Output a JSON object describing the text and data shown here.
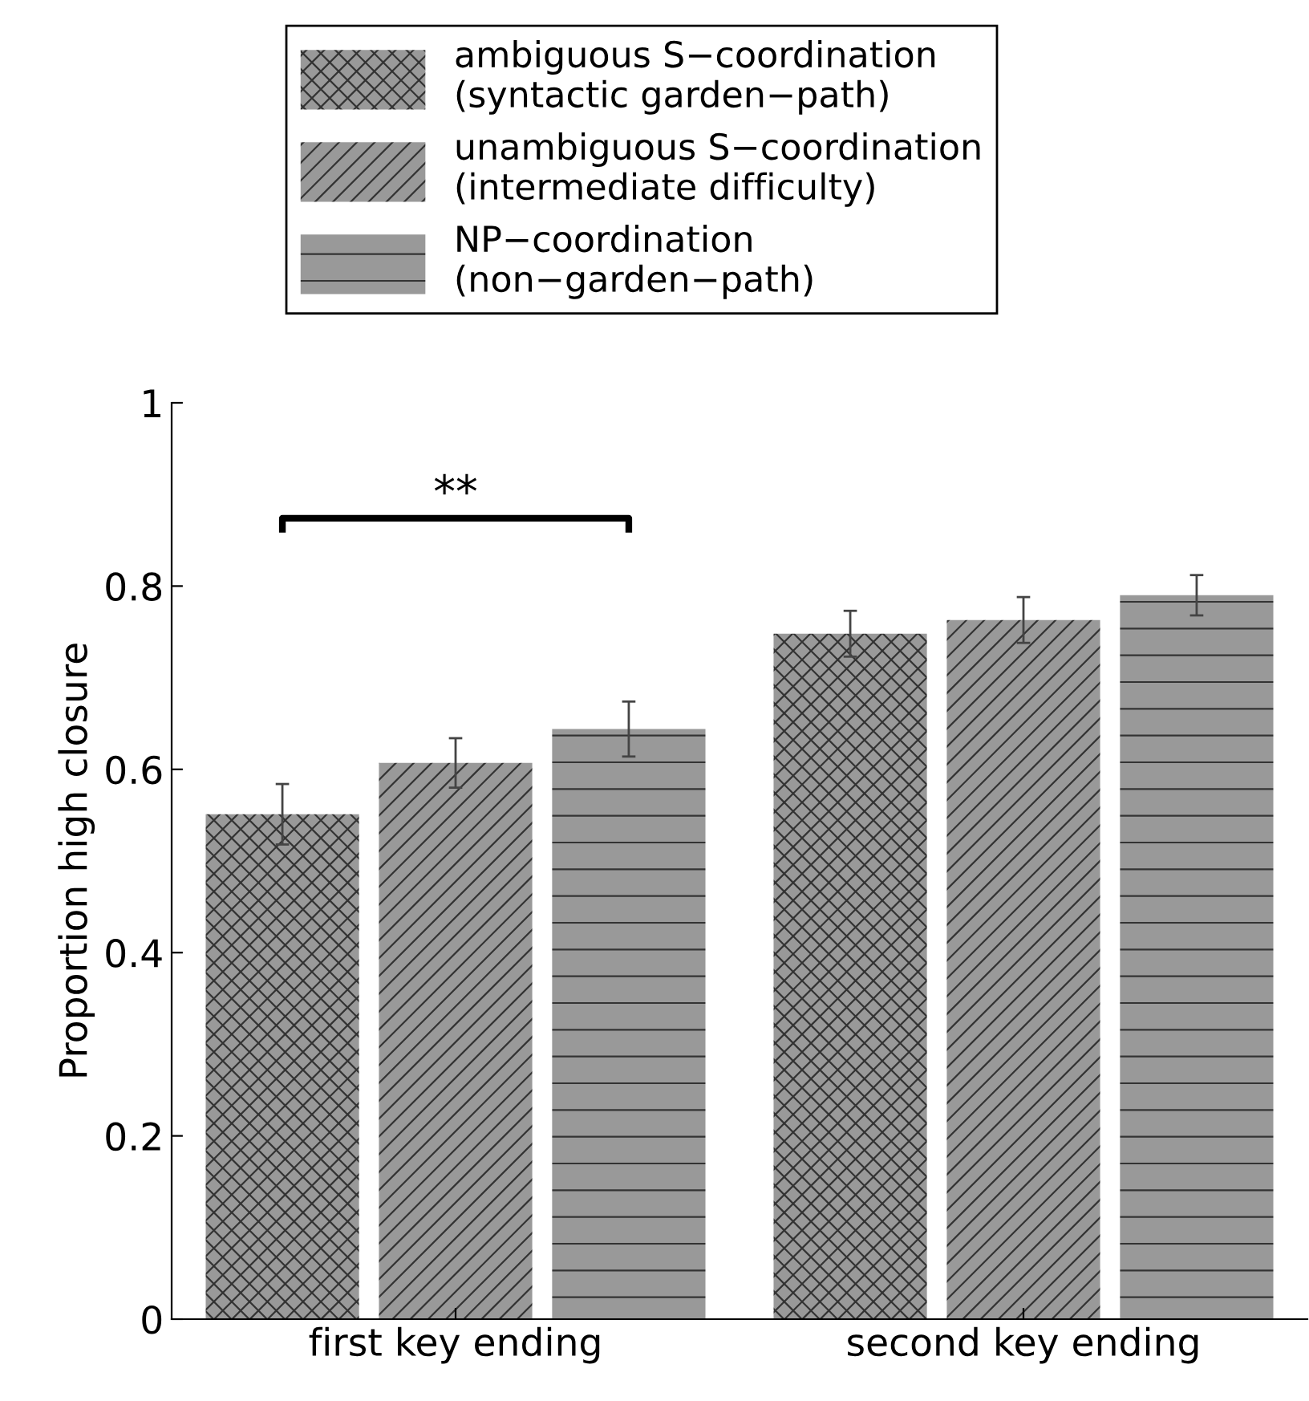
{
  "chart_data": {
    "type": "bar",
    "ylabel": "Proportion high closure",
    "categories": [
      "first key ending",
      "second key ending"
    ],
    "series": [
      {
        "name": "ambiguous S−coordination\n(syntactic garden−path)",
        "color": "#999999",
        "values": [
          0.551,
          0.748
        ],
        "errors": [
          0.033,
          0.025
        ]
      },
      {
        "name": "unambiguous S−coordination\n(intermediate difficulty)",
        "color": "#999999",
        "values": [
          0.607,
          0.763
        ],
        "errors": [
          0.027,
          0.025
        ]
      },
      {
        "name": "NP−coordination\n(non−garden−path)",
        "color": "#999999",
        "values": [
          0.644,
          0.79
        ],
        "errors": [
          0.03,
          0.022
        ]
      }
    ],
    "ylim": [
      0,
      1
    ],
    "yticks": [
      0,
      0.2,
      0.4,
      0.6,
      0.8,
      1
    ],
    "annotations": [
      "**"
    ],
    "legend": "top",
    "grid": false
  }
}
